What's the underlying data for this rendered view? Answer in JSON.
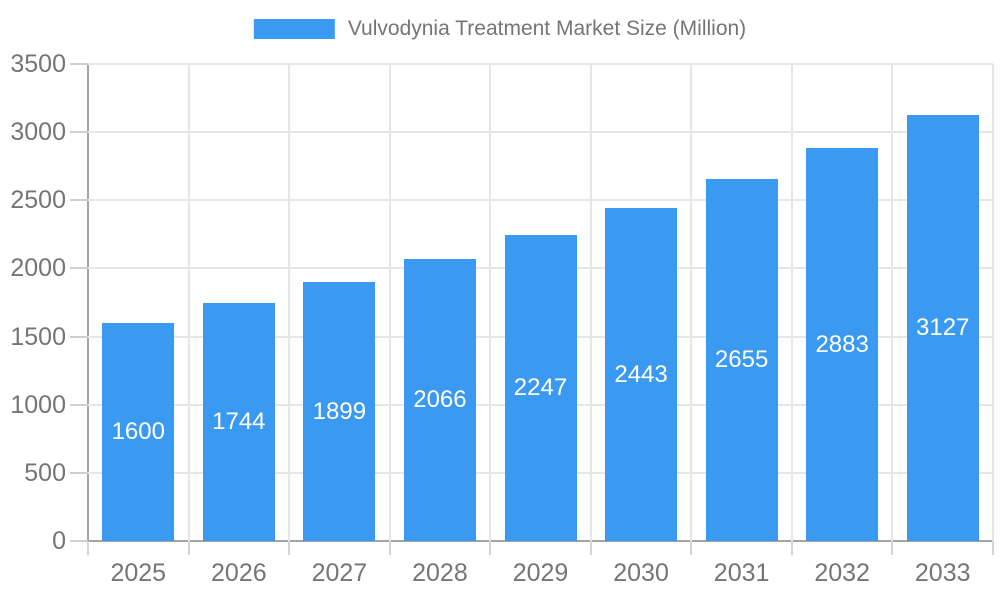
{
  "chart_data": {
    "type": "bar",
    "title": "Vulvodynia Treatment Market Size (Million)",
    "legend": "Vulvodynia Treatment Market Size (Million)",
    "legend_position": "top",
    "categories": [
      "2025",
      "2026",
      "2027",
      "2028",
      "2029",
      "2030",
      "2031",
      "2032",
      "2033"
    ],
    "values": [
      1600,
      1744,
      1899,
      2066,
      2247,
      2443,
      2655,
      2883,
      3127
    ],
    "xlabel": "",
    "ylabel": "",
    "ylim": [
      0,
      3500
    ],
    "yticks": [
      0,
      500,
      1000,
      1500,
      2000,
      2500,
      3000,
      3500
    ],
    "grid": "on",
    "bar_color": "#3a99f1",
    "value_label_color": "#ffffff",
    "axis_line_color": "#a3a3a3",
    "gridline_color": "#e6e6e6",
    "tick_text_color": "#757575"
  }
}
